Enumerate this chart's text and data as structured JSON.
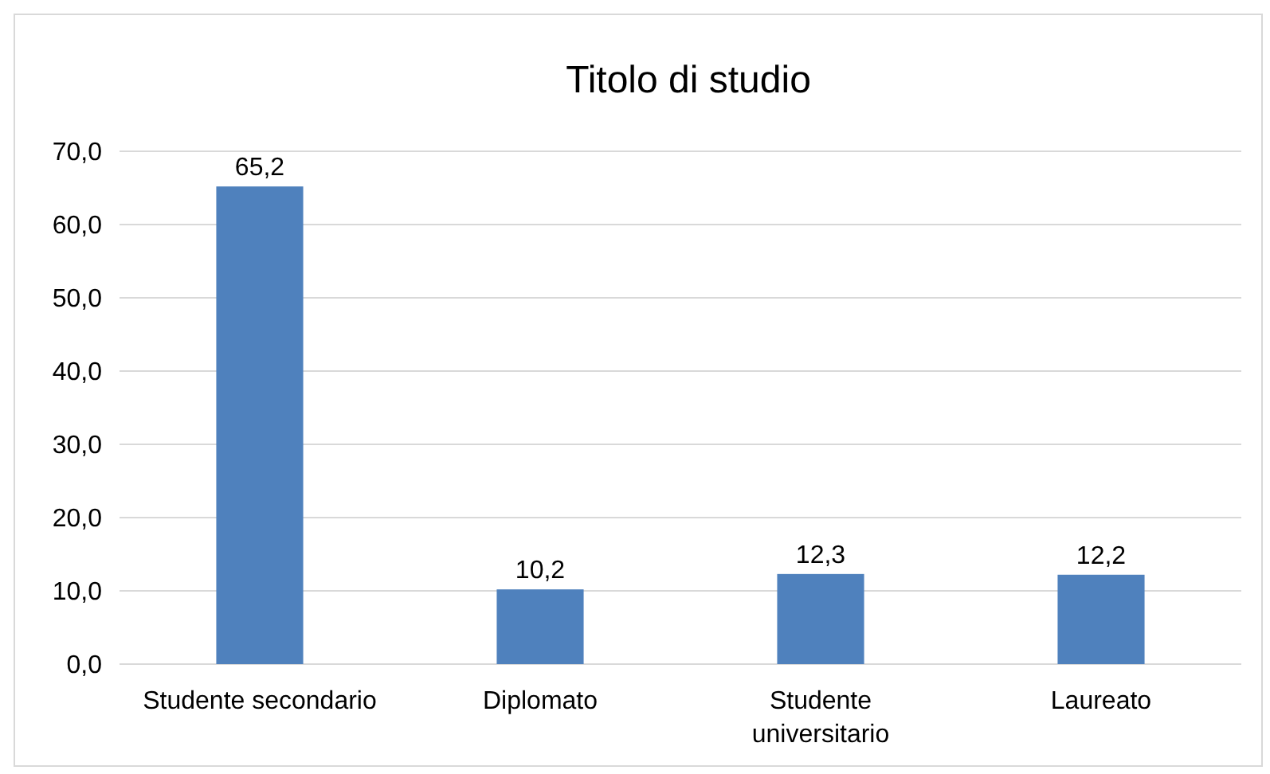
{
  "chart_data": {
    "type": "bar",
    "title": "Titolo di studio",
    "categories": [
      "Studente secondario",
      "Diplomato",
      "Studente universitario",
      "Laureato"
    ],
    "values": [
      65.2,
      10.2,
      12.3,
      12.2
    ],
    "value_labels": [
      "65,2",
      "10,2",
      "12,3",
      "12,2"
    ],
    "color": "#4f81bd",
    "ylim": [
      0,
      70
    ],
    "yticks": [
      {
        "value": 0,
        "label": "0,0"
      },
      {
        "value": 10,
        "label": "10,0"
      },
      {
        "value": 20,
        "label": "20,0"
      },
      {
        "value": 30,
        "label": "30,0"
      },
      {
        "value": 40,
        "label": "40,0"
      },
      {
        "value": 50,
        "label": "50,0"
      },
      {
        "value": 60,
        "label": "60,0"
      },
      {
        "value": 70,
        "label": "70,0"
      }
    ],
    "grid": "y"
  }
}
